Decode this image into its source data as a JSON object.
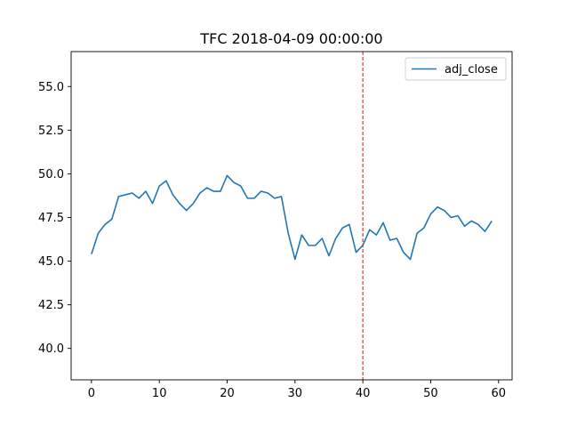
{
  "chart_data": {
    "type": "line",
    "title": "TFC 2018-04-09 00:00:00",
    "xlabel": "",
    "ylabel": "",
    "xlim": [
      -3,
      62
    ],
    "ylim": [
      38.2,
      57.0
    ],
    "x_ticks": [
      0,
      10,
      20,
      30,
      40,
      50,
      60
    ],
    "x_tick_labels": [
      "0",
      "10",
      "20",
      "30",
      "40",
      "50",
      "60"
    ],
    "y_ticks": [
      40.0,
      42.5,
      45.0,
      47.5,
      50.0,
      52.5,
      55.0
    ],
    "y_tick_labels": [
      "40.0",
      "42.5",
      "45.0",
      "47.5",
      "50.0",
      "52.5",
      "55.0"
    ],
    "grid": false,
    "legend_position": "top-right",
    "vline": {
      "x": 40,
      "color": "#d62728",
      "style": "dashed"
    },
    "series": [
      {
        "name": "adj_close",
        "color": "#1f77b4",
        "x": [
          0,
          1,
          2,
          3,
          4,
          5,
          6,
          7,
          8,
          9,
          10,
          11,
          12,
          13,
          14,
          15,
          16,
          17,
          18,
          19,
          20,
          21,
          22,
          23,
          24,
          25,
          26,
          27,
          28,
          29,
          30,
          31,
          32,
          33,
          34,
          35,
          36,
          37,
          38,
          39,
          40,
          41,
          42,
          43,
          44,
          45,
          46,
          47,
          48,
          49,
          50,
          51,
          52,
          53,
          54,
          55,
          56,
          57,
          58,
          59
        ],
        "values": [
          45.4,
          46.6,
          47.1,
          47.4,
          48.7,
          48.8,
          48.9,
          48.6,
          49.0,
          48.3,
          49.3,
          49.6,
          48.8,
          48.3,
          47.9,
          48.3,
          48.9,
          49.2,
          49.0,
          49.0,
          49.9,
          49.5,
          49.3,
          48.6,
          48.6,
          49.0,
          48.9,
          48.6,
          48.7,
          46.6,
          45.1,
          46.5,
          45.9,
          45.9,
          46.3,
          45.3,
          46.3,
          46.9,
          47.1,
          45.5,
          45.9,
          46.8,
          46.5,
          47.2,
          46.2,
          46.3,
          45.5,
          45.1,
          46.6,
          46.9,
          47.7,
          48.1,
          47.9,
          47.5,
          47.6,
          47.0,
          47.3,
          47.1,
          46.7,
          47.3
        ]
      }
    ]
  }
}
